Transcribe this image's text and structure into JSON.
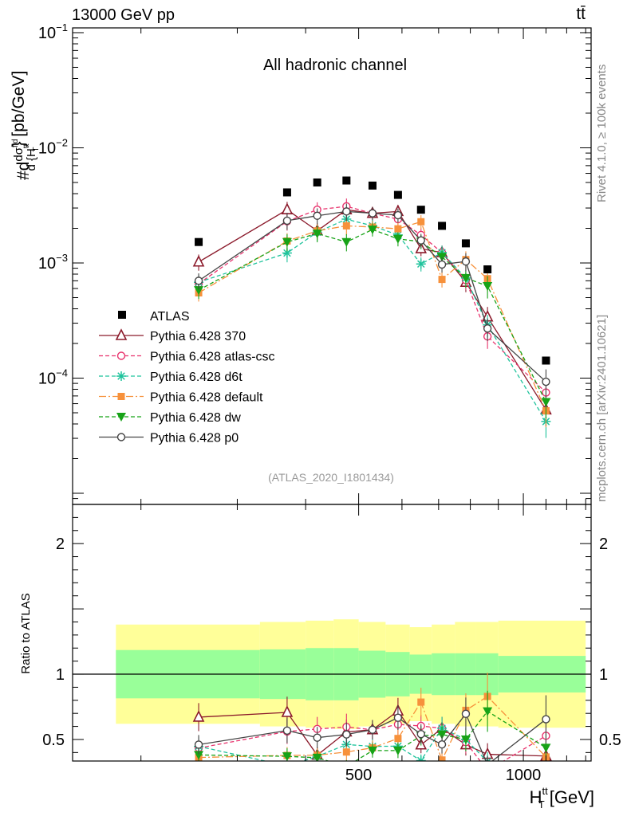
{
  "header": {
    "left": "13000 GeV pp",
    "right": "tt̄"
  },
  "side_labels": {
    "rivet": "Rivet 4.1.0, ≥ 100k events",
    "mcplots": "mcplots.cern.ch [arXiv:2401.10621]"
  },
  "chart_data": {
    "type": "scatter",
    "title": "All hadronic channel",
    "analysis_tag": "(ATLAS_2020_I1801434)",
    "xlabel": {
      "main": "H",
      "sup": "tt",
      "sub": "T",
      "unit": " [GeV]"
    },
    "ylabel": {
      "prefix": "#d",
      "num": "dσ",
      "num_sup": "fid",
      "den": "d {H",
      "den_sup": "tt",
      "den_sub": "T",
      "suffix": "} [pb/GeV]"
    },
    "ratio_ylabel": "Ratio to ATLAS",
    "xlim": [
      150,
      1330
    ],
    "ylim": [
      8e-06,
      0.11
    ],
    "ratio_ylim": [
      0.335,
      2.3
    ],
    "x_major_ticks": [
      500,
      1000
    ],
    "x_tick_labels": [
      "500",
      "1000"
    ],
    "y_decades": [
      {
        "value": 0.1,
        "base": "10",
        "exp": "−1"
      },
      {
        "value": 0.01,
        "base": "10",
        "exp": "−2"
      },
      {
        "value": 0.001,
        "base": "10",
        "exp": "−3"
      },
      {
        "value": 0.0001,
        "base": "10",
        "exp": "−4"
      }
    ],
    "ratio_ticks": [
      {
        "value": 0.5,
        "label": "0.5"
      },
      {
        "value": 1,
        "label": "1"
      },
      {
        "value": 2,
        "label": "2"
      }
    ],
    "x": [
      255,
      370,
      420,
      475,
      530,
      590,
      650,
      710,
      785,
      860,
      1100
    ],
    "data": {
      "name": "ATLAS",
      "color": "#000000",
      "values": [
        0.00152,
        0.0041,
        0.005,
        0.0052,
        0.0047,
        0.0039,
        0.0029,
        0.0021,
        0.00148,
        0.00088,
        0.000142
      ],
      "xedges": [
        180,
        330,
        400,
        450,
        500,
        560,
        620,
        680,
        750,
        820,
        900,
        1300
      ],
      "band_inner": [
        0.815,
        0.81,
        0.8,
        0.8,
        0.82,
        0.83,
        0.85,
        0.84,
        0.84,
        0.84,
        0.86
      ],
      "band_outer": [
        0.62,
        0.6,
        0.59,
        0.58,
        0.6,
        0.62,
        0.64,
        0.62,
        0.6,
        0.6,
        0.59
      ]
    },
    "series": [
      {
        "name": "Pythia 6.428 370",
        "color": "#8b1a2b",
        "marker": "triangle-open",
        "dash": "",
        "values": [
          0.00102,
          0.0029,
          0.0019,
          0.0029,
          0.0027,
          0.0028,
          0.00133,
          0.00123,
          0.00068,
          0.00034,
          5.3e-05
        ],
        "errors": [
          0.16,
          0.17,
          0.16,
          0.17,
          0.13,
          0.14,
          0.14,
          0.15,
          0.18,
          0.22,
          0.28
        ]
      },
      {
        "name": "Pythia 6.428 atlas-csc",
        "color": "#e8336d",
        "marker": "circle-open",
        "dash": "5,3",
        "values": [
          0.00066,
          0.0023,
          0.0029,
          0.0031,
          0.0027,
          0.0024,
          0.00175,
          0.00123,
          0.00071,
          0.00023,
          7.5e-05
        ],
        "errors": [
          0.16,
          0.17,
          0.16,
          0.17,
          0.13,
          0.14,
          0.14,
          0.15,
          0.18,
          0.22,
          0.28
        ]
      },
      {
        "name": "Pythia 6.428 d6t",
        "color": "#1fc39c",
        "marker": "star",
        "dash": "5,3",
        "values": [
          0.00068,
          0.00122,
          0.00185,
          0.0024,
          0.0021,
          0.00175,
          0.00098,
          0.00123,
          0.00074,
          0.00029,
          4.2e-05
        ],
        "errors": [
          0.16,
          0.17,
          0.16,
          0.17,
          0.13,
          0.14,
          0.14,
          0.15,
          0.18,
          0.22,
          0.28
        ]
      },
      {
        "name": "Pythia 6.428 default",
        "color": "#f7913b",
        "marker": "square-filled",
        "dash": "9,3,2,3",
        "values": [
          0.00055,
          0.00155,
          0.0019,
          0.0021,
          0.00205,
          0.00198,
          0.00228,
          0.00072,
          0.00107,
          0.00073,
          5.2e-05
        ],
        "errors": [
          0.16,
          0.17,
          0.16,
          0.17,
          0.13,
          0.14,
          0.14,
          0.15,
          0.18,
          0.22,
          0.28
        ]
      },
      {
        "name": "Pythia 6.428 dw",
        "color": "#17a317",
        "marker": "triangle-down-filled",
        "dash": "5,3",
        "values": [
          0.00058,
          0.00152,
          0.0018,
          0.00152,
          0.00195,
          0.00162,
          0.00153,
          0.00113,
          0.00074,
          0.00063,
          6.2e-05
        ],
        "errors": [
          0.16,
          0.17,
          0.16,
          0.17,
          0.13,
          0.14,
          0.14,
          0.15,
          0.18,
          0.22,
          0.28
        ]
      },
      {
        "name": "Pythia 6.428 p0",
        "color": "#444444",
        "marker": "circle-open",
        "dash": "",
        "values": [
          0.0007,
          0.00233,
          0.00257,
          0.0028,
          0.0027,
          0.0026,
          0.00157,
          0.00097,
          0.00103,
          0.00027,
          9.3e-05
        ],
        "errors": [
          0.16,
          0.17,
          0.16,
          0.17,
          0.13,
          0.14,
          0.14,
          0.15,
          0.18,
          0.22,
          0.28
        ]
      }
    ]
  }
}
